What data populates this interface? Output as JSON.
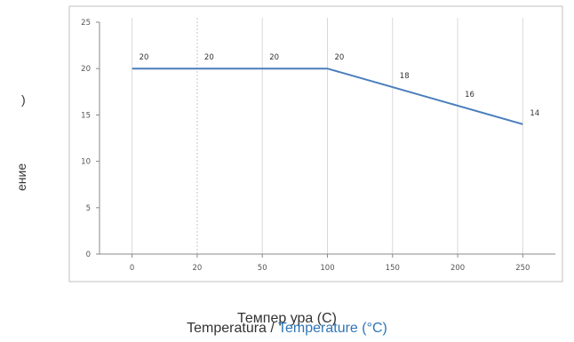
{
  "chart_data": {
    "type": "line",
    "categories": [
      "0",
      "20",
      "50",
      "100",
      "150",
      "200",
      "250"
    ],
    "series": [
      {
        "values": [
          20,
          20,
          20,
          20,
          18,
          16,
          14
        ],
        "data_labels": [
          "20",
          "20",
          "20",
          "20",
          "18",
          "16",
          "14"
        ]
      }
    ],
    "yticks": [
      "0",
      "5",
      "10",
      "15",
      "20",
      "25"
    ],
    "ylim": [
      0,
      25
    ],
    "grid": "vertical",
    "ylabel_fragments": [
      ")",
      "ение"
    ],
    "xlabel_overlay": "Темпер  ура (C)",
    "xlabel_main": "Temperatura",
    "xlabel_separator": " / ",
    "xlabel_english": "Temperature (°C)",
    "colors": {
      "line": "#4a7ebb",
      "axis": "#888888",
      "grid_solid": "#d9d9d9",
      "grid_dashed": "#c8c8c8",
      "frame": "#bfbfbf",
      "english_label": "#2e75b6"
    }
  }
}
